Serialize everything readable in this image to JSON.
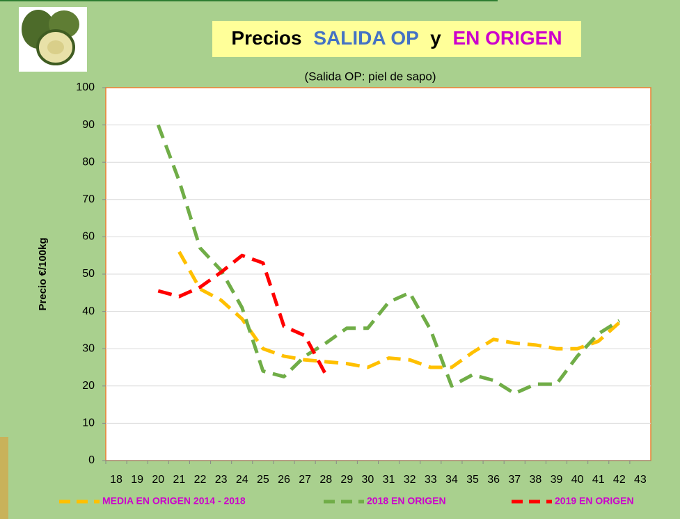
{
  "chart_data": {
    "type": "line",
    "title_parts": [
      "Precios",
      "SALIDA OP",
      "y",
      "EN ORIGEN"
    ],
    "subtitle": "(Salida OP: piel de sapo)",
    "y_label": "Precio €/100kg",
    "categories": [
      18,
      19,
      20,
      21,
      22,
      23,
      24,
      25,
      26,
      27,
      28,
      29,
      30,
      31,
      32,
      33,
      34,
      35,
      36,
      37,
      38,
      39,
      40,
      41,
      42,
      43
    ],
    "series": [
      {
        "name": "MEDIA EN ORIGEN 2014 - 2018",
        "color": "#ffc000",
        "values": [
          null,
          null,
          null,
          56,
          46,
          43,
          38,
          30,
          28,
          27,
          26.5,
          26,
          25,
          27.5,
          27,
          25,
          25,
          29,
          32.5,
          31.5,
          31,
          30,
          30,
          32,
          37,
          null
        ]
      },
      {
        "name": "2018 EN ORIGEN",
        "color": "#70ad47",
        "values": [
          null,
          null,
          90,
          75,
          57,
          51,
          41,
          24,
          22.5,
          28,
          31.5,
          35.5,
          35.5,
          42.5,
          45,
          35,
          20,
          23,
          21.5,
          18,
          20.5,
          20.5,
          28,
          34,
          37.5,
          null
        ]
      },
      {
        "name": "2019 EN ORIGEN",
        "color": "#ff0000",
        "values": [
          null,
          null,
          45.5,
          44,
          46.5,
          50.5,
          55,
          53,
          36,
          33.5,
          23,
          null,
          null,
          null,
          null,
          null,
          null,
          null,
          null,
          null,
          null,
          null,
          null,
          null,
          null,
          null
        ]
      }
    ],
    "ylim": [
      0,
      100
    ],
    "yticks": [
      0,
      10,
      20,
      30,
      40,
      50,
      60,
      70,
      80,
      90,
      100
    ],
    "grid": true
  }
}
